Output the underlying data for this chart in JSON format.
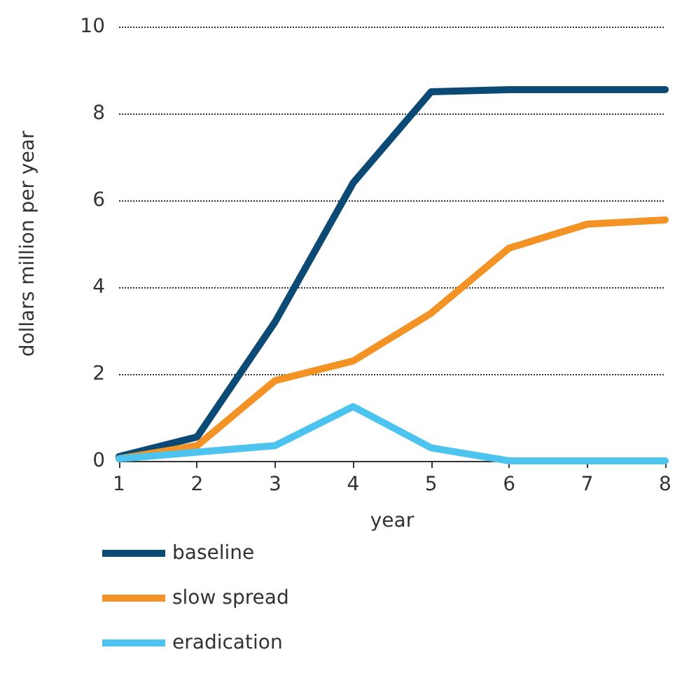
{
  "chart_data": {
    "type": "line",
    "xlabel": "year",
    "ylabel": "dollars million per year",
    "x": [
      1,
      2,
      3,
      4,
      5,
      6,
      7,
      8
    ],
    "series": [
      {
        "name": "baseline",
        "color": "#0b4a75",
        "values": [
          0.1,
          0.55,
          3.2,
          6.4,
          8.5,
          8.55,
          8.55,
          8.55
        ]
      },
      {
        "name": "slow spread",
        "color": "#f39325",
        "values": [
          0.05,
          0.35,
          1.85,
          2.3,
          3.4,
          4.9,
          5.45,
          5.55
        ]
      },
      {
        "name": "eradication",
        "color": "#4dc3ef",
        "values": [
          0.05,
          0.2,
          0.35,
          1.25,
          0.3,
          0,
          0,
          0
        ]
      }
    ],
    "xlim": [
      1,
      8
    ],
    "xticks": [
      1,
      2,
      3,
      4,
      5,
      6,
      7,
      8
    ],
    "ylim": [
      0,
      10
    ],
    "yticks": [
      0,
      2,
      4,
      6,
      8,
      10
    ],
    "grid": "y",
    "legend": "bottom left",
    "marker": "none",
    "line_style": "solid"
  }
}
